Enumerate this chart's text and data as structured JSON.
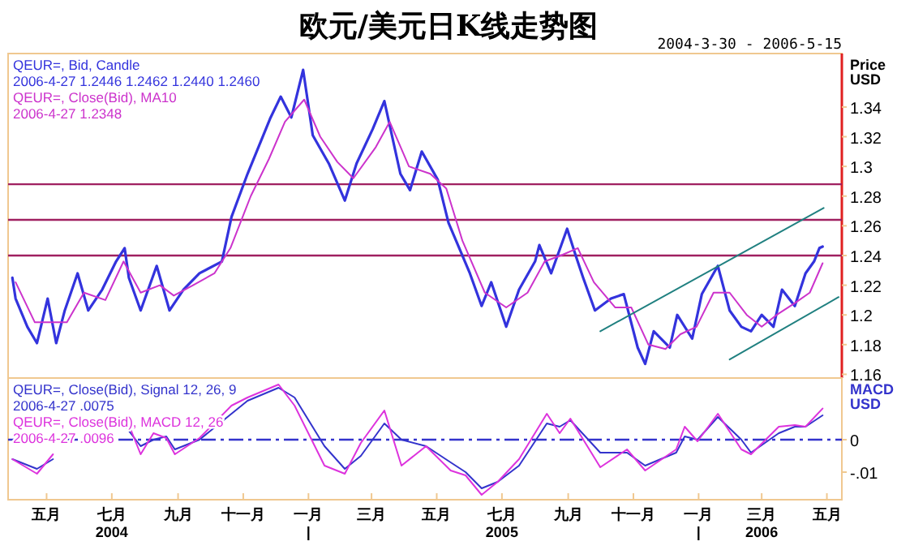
{
  "chart_data": [
    {
      "type": "line",
      "title": "欧元/美元日K线走势图",
      "subtitle": "2004-3-30 - 2006-5-15",
      "ylabel": "Price\nUSD",
      "legend": "top left",
      "tick_labels": "y",
      "xlim": [
        "2004-03-26",
        "2006-05-15"
      ],
      "ylim": [
        1.1575,
        1.376
      ],
      "yticks": [
        1.16,
        1.18,
        {
          "value": 1.2,
          "label": "1.2"
        },
        1.22,
        1.24,
        1.26,
        1.28,
        {
          "value": 1.3,
          "label": "1.3"
        },
        1.32,
        1.34
      ],
      "annotations": [
        "2006-4-27 1.2446 1.2462 1.2440 1.2460",
        "2006-4-27 1.2348"
      ],
      "ref_lines": [
        {
          "axis": "y",
          "value": 1.24,
          "color": "#a02060",
          "line_style": "solid"
        },
        {
          "axis": "y",
          "value": 1.264,
          "color": "#a02060",
          "line_style": "solid"
        },
        {
          "axis": "y",
          "value": 1.288,
          "color": "#a02060",
          "line_style": "solid"
        }
      ],
      "series": [
        {
          "name": "QEUR=, Bid, Candle",
          "color": "#3333dd",
          "x": [
            "2004-03-30",
            "2004-04-02",
            "2004-04-13",
            "2004-04-22",
            "2004-05-02",
            "2004-05-10",
            "2004-05-18",
            "2004-05-30",
            "2004-06-09",
            "2004-06-22",
            "2004-07-05",
            "2004-07-13",
            "2004-07-17",
            "2004-07-28",
            "2004-08-12",
            "2004-08-24",
            "2004-09-06",
            "2004-09-21",
            "2004-10-12",
            "2004-10-21",
            "2004-11-05",
            "2004-11-26",
            "2004-12-06",
            "2004-12-16",
            "2004-12-27",
            "2005-01-05",
            "2005-01-20",
            "2005-02-04",
            "2005-02-15",
            "2005-03-02",
            "2005-03-13",
            "2005-03-28",
            "2005-04-06",
            "2005-04-17",
            "2005-05-02",
            "2005-05-12",
            "2005-06-01",
            "2005-06-12",
            "2005-06-21",
            "2005-07-05",
            "2005-07-17",
            "2005-08-01",
            "2005-08-05",
            "2005-08-16",
            "2005-08-31",
            "2005-09-08",
            "2005-09-15",
            "2005-09-26",
            "2005-10-11",
            "2005-10-23",
            "2005-11-05",
            "2005-11-12",
            "2005-11-20",
            "2005-12-05",
            "2005-12-12",
            "2005-12-26",
            "2006-01-04",
            "2006-01-19",
            "2006-01-30",
            "2006-02-10",
            "2006-02-19",
            "2006-03-01",
            "2006-03-12",
            "2006-03-20",
            "2006-04-01",
            "2006-04-11",
            "2006-04-19",
            "2006-04-24",
            "2006-04-27"
          ],
          "values": [
            1.225,
            1.211,
            1.192,
            1.181,
            1.211,
            1.181,
            1.203,
            1.228,
            1.203,
            1.217,
            1.236,
            1.245,
            1.225,
            1.203,
            1.233,
            1.203,
            1.217,
            1.228,
            1.236,
            1.266,
            1.295,
            1.332,
            1.347,
            1.333,
            1.365,
            1.321,
            1.302,
            1.277,
            1.302,
            1.325,
            1.344,
            1.295,
            1.284,
            1.31,
            1.291,
            1.262,
            1.228,
            1.206,
            1.222,
            1.192,
            1.217,
            1.236,
            1.247,
            1.228,
            1.258,
            1.24,
            1.225,
            1.203,
            1.211,
            1.214,
            1.178,
            1.167,
            1.189,
            1.178,
            1.2,
            1.184,
            1.214,
            1.233,
            1.203,
            1.192,
            1.189,
            1.2,
            1.192,
            1.217,
            1.206,
            1.228,
            1.236,
            1.245,
            1.246
          ]
        },
        {
          "name": "QEUR=, Close(Bid), MA10",
          "color": "#cc33cc",
          "x": [
            "2004-04-02",
            "2004-04-20",
            "2004-05-05",
            "2004-05-20",
            "2004-06-05",
            "2004-06-25",
            "2004-07-12",
            "2004-07-28",
            "2004-08-15",
            "2004-08-28",
            "2004-09-15",
            "2004-10-05",
            "2004-10-20",
            "2004-11-08",
            "2004-11-25",
            "2004-12-10",
            "2004-12-28",
            "2005-01-12",
            "2005-01-28",
            "2005-02-12",
            "2005-03-05",
            "2005-03-18",
            "2005-04-05",
            "2005-04-25",
            "2005-05-10",
            "2005-05-25",
            "2005-06-15",
            "2005-07-05",
            "2005-07-25",
            "2005-08-10",
            "2005-08-25",
            "2005-09-10",
            "2005-09-25",
            "2005-10-15",
            "2005-10-30",
            "2005-11-15",
            "2005-12-01",
            "2005-12-15",
            "2005-12-30",
            "2006-01-15",
            "2006-01-30",
            "2006-02-15",
            "2006-03-01",
            "2006-03-15",
            "2006-04-01",
            "2006-04-15",
            "2006-04-27"
          ],
          "values": [
            1.222,
            1.195,
            1.195,
            1.195,
            1.215,
            1.21,
            1.236,
            1.215,
            1.22,
            1.213,
            1.22,
            1.228,
            1.245,
            1.28,
            1.305,
            1.33,
            1.345,
            1.32,
            1.303,
            1.292,
            1.313,
            1.33,
            1.3,
            1.295,
            1.285,
            1.25,
            1.215,
            1.205,
            1.215,
            1.236,
            1.24,
            1.245,
            1.222,
            1.205,
            1.205,
            1.18,
            1.177,
            1.187,
            1.192,
            1.215,
            1.215,
            1.2,
            1.192,
            1.2,
            1.208,
            1.215,
            1.2348
          ]
        },
        {
          "color": "#208080",
          "x": [
            "2005-10-01",
            "2006-04-28"
          ],
          "values": [
            1.189,
            1.272
          ]
        },
        {
          "color": "#208080",
          "x": [
            "2006-01-30",
            "2006-05-12"
          ],
          "values": [
            1.17,
            1.212
          ]
        }
      ]
    },
    {
      "type": "line",
      "ylabel": "MACD\nUSD",
      "legend": "top left",
      "xlim": [
        "2004-03-26",
        "2006-05-15"
      ],
      "ylim": [
        -0.0185,
        0.019
      ],
      "yticks": [
        0,
        {
          "value": -0.01,
          "label": "-.01"
        }
      ],
      "xticks": [
        {
          "value": "2004-05-01",
          "label": "五月"
        },
        {
          "value": "2004-07-01",
          "label": "七月\n2004"
        },
        {
          "value": "2004-09-01",
          "label": "九月"
        },
        {
          "value": "2004-11-01",
          "label": "十一月"
        },
        {
          "value": "2005-01-01",
          "label": "一月\n|"
        },
        {
          "value": "2005-03-01",
          "label": "三月"
        },
        {
          "value": "2005-05-01",
          "label": "五月"
        },
        {
          "value": "2005-07-01",
          "label": "七月\n2005"
        },
        {
          "value": "2005-09-01",
          "label": "九月"
        },
        {
          "value": "2005-11-01",
          "label": "十一月"
        },
        {
          "value": "2006-01-01",
          "label": "一月\n|"
        },
        {
          "value": "2006-03-01",
          "label": "三月\n2006"
        },
        {
          "value": "2006-05-01",
          "label": "五月"
        }
      ],
      "annotations": [
        "2006-4-27 .0075",
        "2006-4-27 .0096"
      ],
      "ref_lines": [
        {
          "axis": "y",
          "value": 0,
          "color": "#3333cc",
          "line_style": "dashdot"
        }
      ],
      "series": [
        {
          "name": "QEUR=, Close(Bid), Signal 12, 26, 9",
          "color": "#3333cc",
          "x": [
            "2004-03-30",
            "2004-04-22",
            "2004-05-07",
            "2004-06-01",
            "2004-07-14",
            "2004-07-28",
            "2004-08-09",
            "2004-08-21",
            "2004-08-29",
            "2004-09-21",
            "2004-10-21",
            "2004-11-05",
            "2004-12-04",
            "2004-12-19",
            "2005-01-16",
            "2005-02-04",
            "2005-02-19",
            "2005-03-13",
            "2005-03-29",
            "2005-04-21",
            "2005-05-14",
            "2005-05-28",
            "2005-06-12",
            "2005-06-27",
            "2005-07-17",
            "2005-08-12",
            "2005-08-24",
            "2005-09-03",
            "2005-10-01",
            "2005-10-26",
            "2005-11-12",
            "2005-12-11",
            "2005-12-19",
            "2005-12-31",
            "2006-01-19",
            "2006-02-10",
            "2006-02-19",
            "2006-03-17",
            "2006-04-01",
            "2006-04-11",
            "2006-04-27"
          ],
          "values": [
            -0.006,
            -0.009,
            -0.006,
            null,
            0.004,
            -0.002,
            0.0,
            0.001,
            -0.003,
            0.0,
            0.008,
            0.012,
            0.016,
            0.013,
            -0.002,
            -0.009,
            -0.005,
            0.005,
            0.0,
            -0.002,
            -0.007,
            -0.01,
            -0.015,
            -0.013,
            -0.008,
            0.005,
            0.004,
            0.006,
            -0.004,
            -0.004,
            -0.008,
            -0.004,
            0.001,
            0.0,
            0.007,
            0.0,
            -0.004,
            0.002,
            0.004,
            0.004,
            0.0075
          ]
        },
        {
          "name": "QEUR=, Close(Bid), MACD 12, 26",
          "color": "#dd33dd",
          "x": [
            "2004-03-30",
            "2004-04-22",
            "2004-05-07",
            "2004-06-01",
            "2004-07-14",
            "2004-07-28",
            "2004-08-09",
            "2004-08-21",
            "2004-08-29",
            "2004-09-21",
            "2004-10-21",
            "2004-11-05",
            "2004-12-04",
            "2004-12-19",
            "2005-01-16",
            "2005-02-04",
            "2005-02-19",
            "2005-03-13",
            "2005-03-29",
            "2005-04-21",
            "2005-05-14",
            "2005-05-28",
            "2005-06-12",
            "2005-06-27",
            "2005-07-17",
            "2005-08-12",
            "2005-08-24",
            "2005-09-03",
            "2005-10-01",
            "2005-10-26",
            "2005-11-12",
            "2005-12-11",
            "2005-12-19",
            "2005-12-31",
            "2006-01-19",
            "2006-02-10",
            "2006-02-19",
            "2006-03-17",
            "2006-04-01",
            "2006-04-11",
            "2006-04-27"
          ],
          "values": [
            -0.006,
            -0.0105,
            -0.0045,
            null,
            0.007,
            -0.0045,
            0.002,
            0.0005,
            -0.0045,
            0.0005,
            0.0105,
            0.013,
            0.017,
            0.0105,
            -0.008,
            -0.0105,
            -0.001,
            0.009,
            -0.008,
            -0.002,
            -0.0095,
            -0.011,
            -0.017,
            -0.013,
            -0.006,
            0.008,
            0.002,
            0.0065,
            -0.0085,
            -0.003,
            -0.0095,
            -0.003,
            0.004,
            -0.0005,
            0.008,
            -0.003,
            -0.0045,
            0.004,
            0.0045,
            0.004,
            0.0096
          ]
        }
      ]
    }
  ]
}
